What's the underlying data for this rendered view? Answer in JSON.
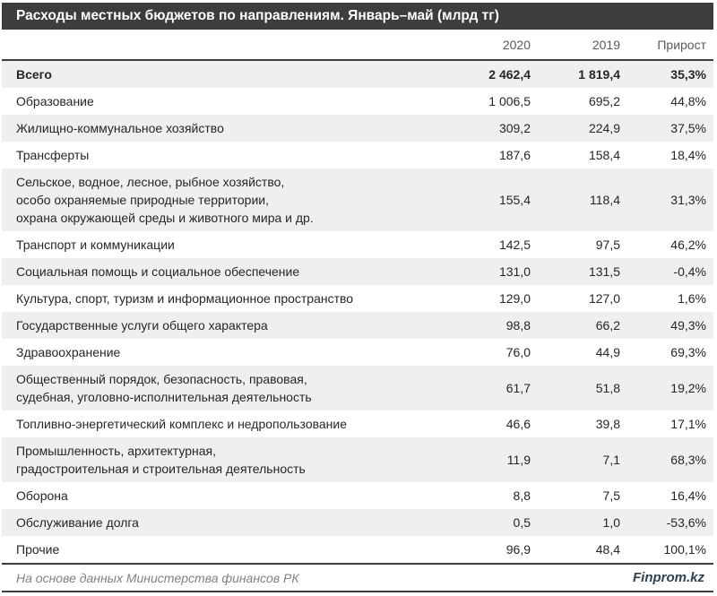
{
  "title": "Расходы местных бюджетов по направлениям. Январь–май (млрд тг)",
  "columns": {
    "y2020": "2020",
    "y2019": "2019",
    "growth": "Прирост"
  },
  "footer": {
    "source": "На основе данных Министерства финансов РК",
    "brand": "Finprom.kz"
  },
  "colors": {
    "header_bg": "#3d3d3d",
    "row_alt_bg": "#efefef",
    "border": "#3d3d3d",
    "column_header_text": "#595959",
    "brand_text": "#2e4154"
  },
  "chart_data": {
    "type": "table",
    "title": "Расходы местных бюджетов по направлениям. Январь–май (млрд тг)",
    "columns": [
      "",
      "2020",
      "2019",
      "Прирост"
    ],
    "rows": [
      {
        "label": "Всего",
        "y2020": "2 462,4",
        "y2019": "1 819,4",
        "growth": "35,3%",
        "bold": true
      },
      {
        "label": "Образование",
        "y2020": "1 006,5",
        "y2019": "695,2",
        "growth": "44,8%",
        "bold": false
      },
      {
        "label": "Жилищно-коммунальное хозяйство",
        "y2020": "309,2",
        "y2019": "224,9",
        "growth": "37,5%",
        "bold": false
      },
      {
        "label": "Трансферты",
        "y2020": "187,6",
        "y2019": "158,4",
        "growth": "18,4%",
        "bold": false
      },
      {
        "label": "Сельское, водное, лесное, рыбное хозяйство,\nособо охраняемые природные территории,\nохрана окружающей среды и животного мира и др.",
        "y2020": "155,4",
        "y2019": "118,4",
        "growth": "31,3%",
        "bold": false
      },
      {
        "label": "Транспорт и коммуникации",
        "y2020": "142,5",
        "y2019": "97,5",
        "growth": "46,2%",
        "bold": false
      },
      {
        "label": "Социальная помощь и социальное обеспечение",
        "y2020": "131,0",
        "y2019": "131,5",
        "growth": "-0,4%",
        "bold": false
      },
      {
        "label": "Культура, спорт, туризм и информационное пространство",
        "y2020": "129,0",
        "y2019": "127,0",
        "growth": "1,6%",
        "bold": false
      },
      {
        "label": "Государственные услуги общего характера",
        "y2020": "98,8",
        "y2019": "66,2",
        "growth": "49,3%",
        "bold": false
      },
      {
        "label": "Здравоохранение",
        "y2020": "76,0",
        "y2019": "44,9",
        "growth": "69,3%",
        "bold": false
      },
      {
        "label": "Общественный порядок, безопасность, правовая,\nсудебная, уголовно-исполнительная деятельность",
        "y2020": "61,7",
        "y2019": "51,8",
        "growth": "19,2%",
        "bold": false
      },
      {
        "label": "Топливно-энергетический комплекс и недропользование",
        "y2020": "46,6",
        "y2019": "39,8",
        "growth": "17,1%",
        "bold": false
      },
      {
        "label": "Промышленность, архитектурная,\nградостроительная и строительная деятельность",
        "y2020": "11,9",
        "y2019": "7,1",
        "growth": "68,3%",
        "bold": false
      },
      {
        "label": "Оборона",
        "y2020": "8,8",
        "y2019": "7,5",
        "growth": "16,4%",
        "bold": false
      },
      {
        "label": "Обслуживание долга",
        "y2020": "0,5",
        "y2019": "1,0",
        "growth": "-53,6%",
        "bold": false
      },
      {
        "label": "Прочие",
        "y2020": "96,9",
        "y2019": "48,4",
        "growth": "100,1%",
        "bold": false
      }
    ],
    "source": "На основе данных Министерства финансов РК",
    "brand": "Finprom.kz"
  }
}
